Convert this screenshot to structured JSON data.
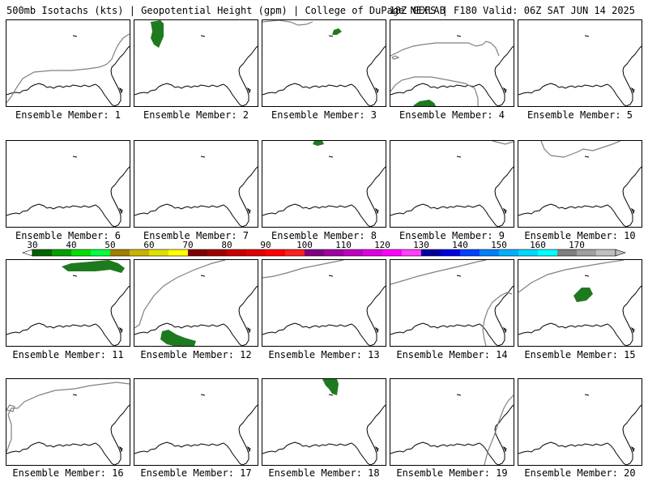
{
  "header": {
    "left": "500mb Isotachs (kts) | Geopotential Height (gpm) | College of DuPage NEXLAB",
    "right": "18Z GEFS | F180 Valid: 06Z SAT JUN 14 2025"
  },
  "colorbar": {
    "labels": [
      "30",
      "40",
      "50",
      "60",
      "70",
      "80",
      "90",
      "100",
      "110",
      "120",
      "130",
      "140",
      "150",
      "160",
      "170"
    ],
    "colors": [
      "#006400",
      "#00a000",
      "#00e000",
      "#00ff40",
      "#a08000",
      "#c8b400",
      "#e0e000",
      "#ffff00",
      "#800000",
      "#a00000",
      "#c80000",
      "#e00000",
      "#ff0000",
      "#ff2020",
      "#800080",
      "#a000a0",
      "#c000c0",
      "#e000e0",
      "#ff00ff",
      "#ff40ff",
      "#0000a0",
      "#0000e0",
      "#0040ff",
      "#0080ff",
      "#00b0ff",
      "#00d8ff",
      "#00ffff",
      "#808080",
      "#a0a0a0",
      "#c0c0c0"
    ]
  },
  "members": [
    {
      "label": "Ensemble Member: 1"
    },
    {
      "label": "Ensemble Member: 2"
    },
    {
      "label": "Ensemble Member: 3"
    },
    {
      "label": "Ensemble Member: 4"
    },
    {
      "label": "Ensemble Member: 5"
    },
    {
      "label": "Ensemble Member: 6"
    },
    {
      "label": "Ensemble Member: 7"
    },
    {
      "label": "Ensemble Member: 8"
    },
    {
      "label": "Ensemble Member: 9"
    },
    {
      "label": "Ensemble Member: 10"
    },
    {
      "label": "Ensemble Member: 11"
    },
    {
      "label": "Ensemble Member: 12"
    },
    {
      "label": "Ensemble Member: 13"
    },
    {
      "label": "Ensemble Member: 14"
    },
    {
      "label": "Ensemble Member: 15"
    },
    {
      "label": "Ensemble Member: 16"
    },
    {
      "label": "Ensemble Member: 17"
    },
    {
      "label": "Ensemble Member: 18"
    },
    {
      "label": "Ensemble Member: 19"
    },
    {
      "label": "Ensemble Member: 20"
    }
  ],
  "colors": {
    "coastline": "#000000",
    "height_contour": "#808080",
    "isotach_fill": "#1e7a1e"
  }
}
